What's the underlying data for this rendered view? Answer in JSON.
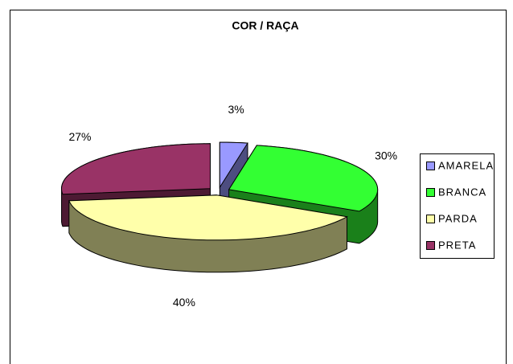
{
  "chart_data": {
    "type": "pie",
    "title": "COR / RAÇA",
    "categories": [
      "AMARELA",
      "BRANCA",
      "PARDA",
      "PRETA"
    ],
    "values": [
      3,
      30,
      40,
      27
    ],
    "value_labels": [
      "3%",
      "30%",
      "40%",
      "27%"
    ],
    "colors": [
      "#9999ff",
      "#33ff33",
      "#ffffaa",
      "#993366"
    ],
    "legend": "right"
  }
}
